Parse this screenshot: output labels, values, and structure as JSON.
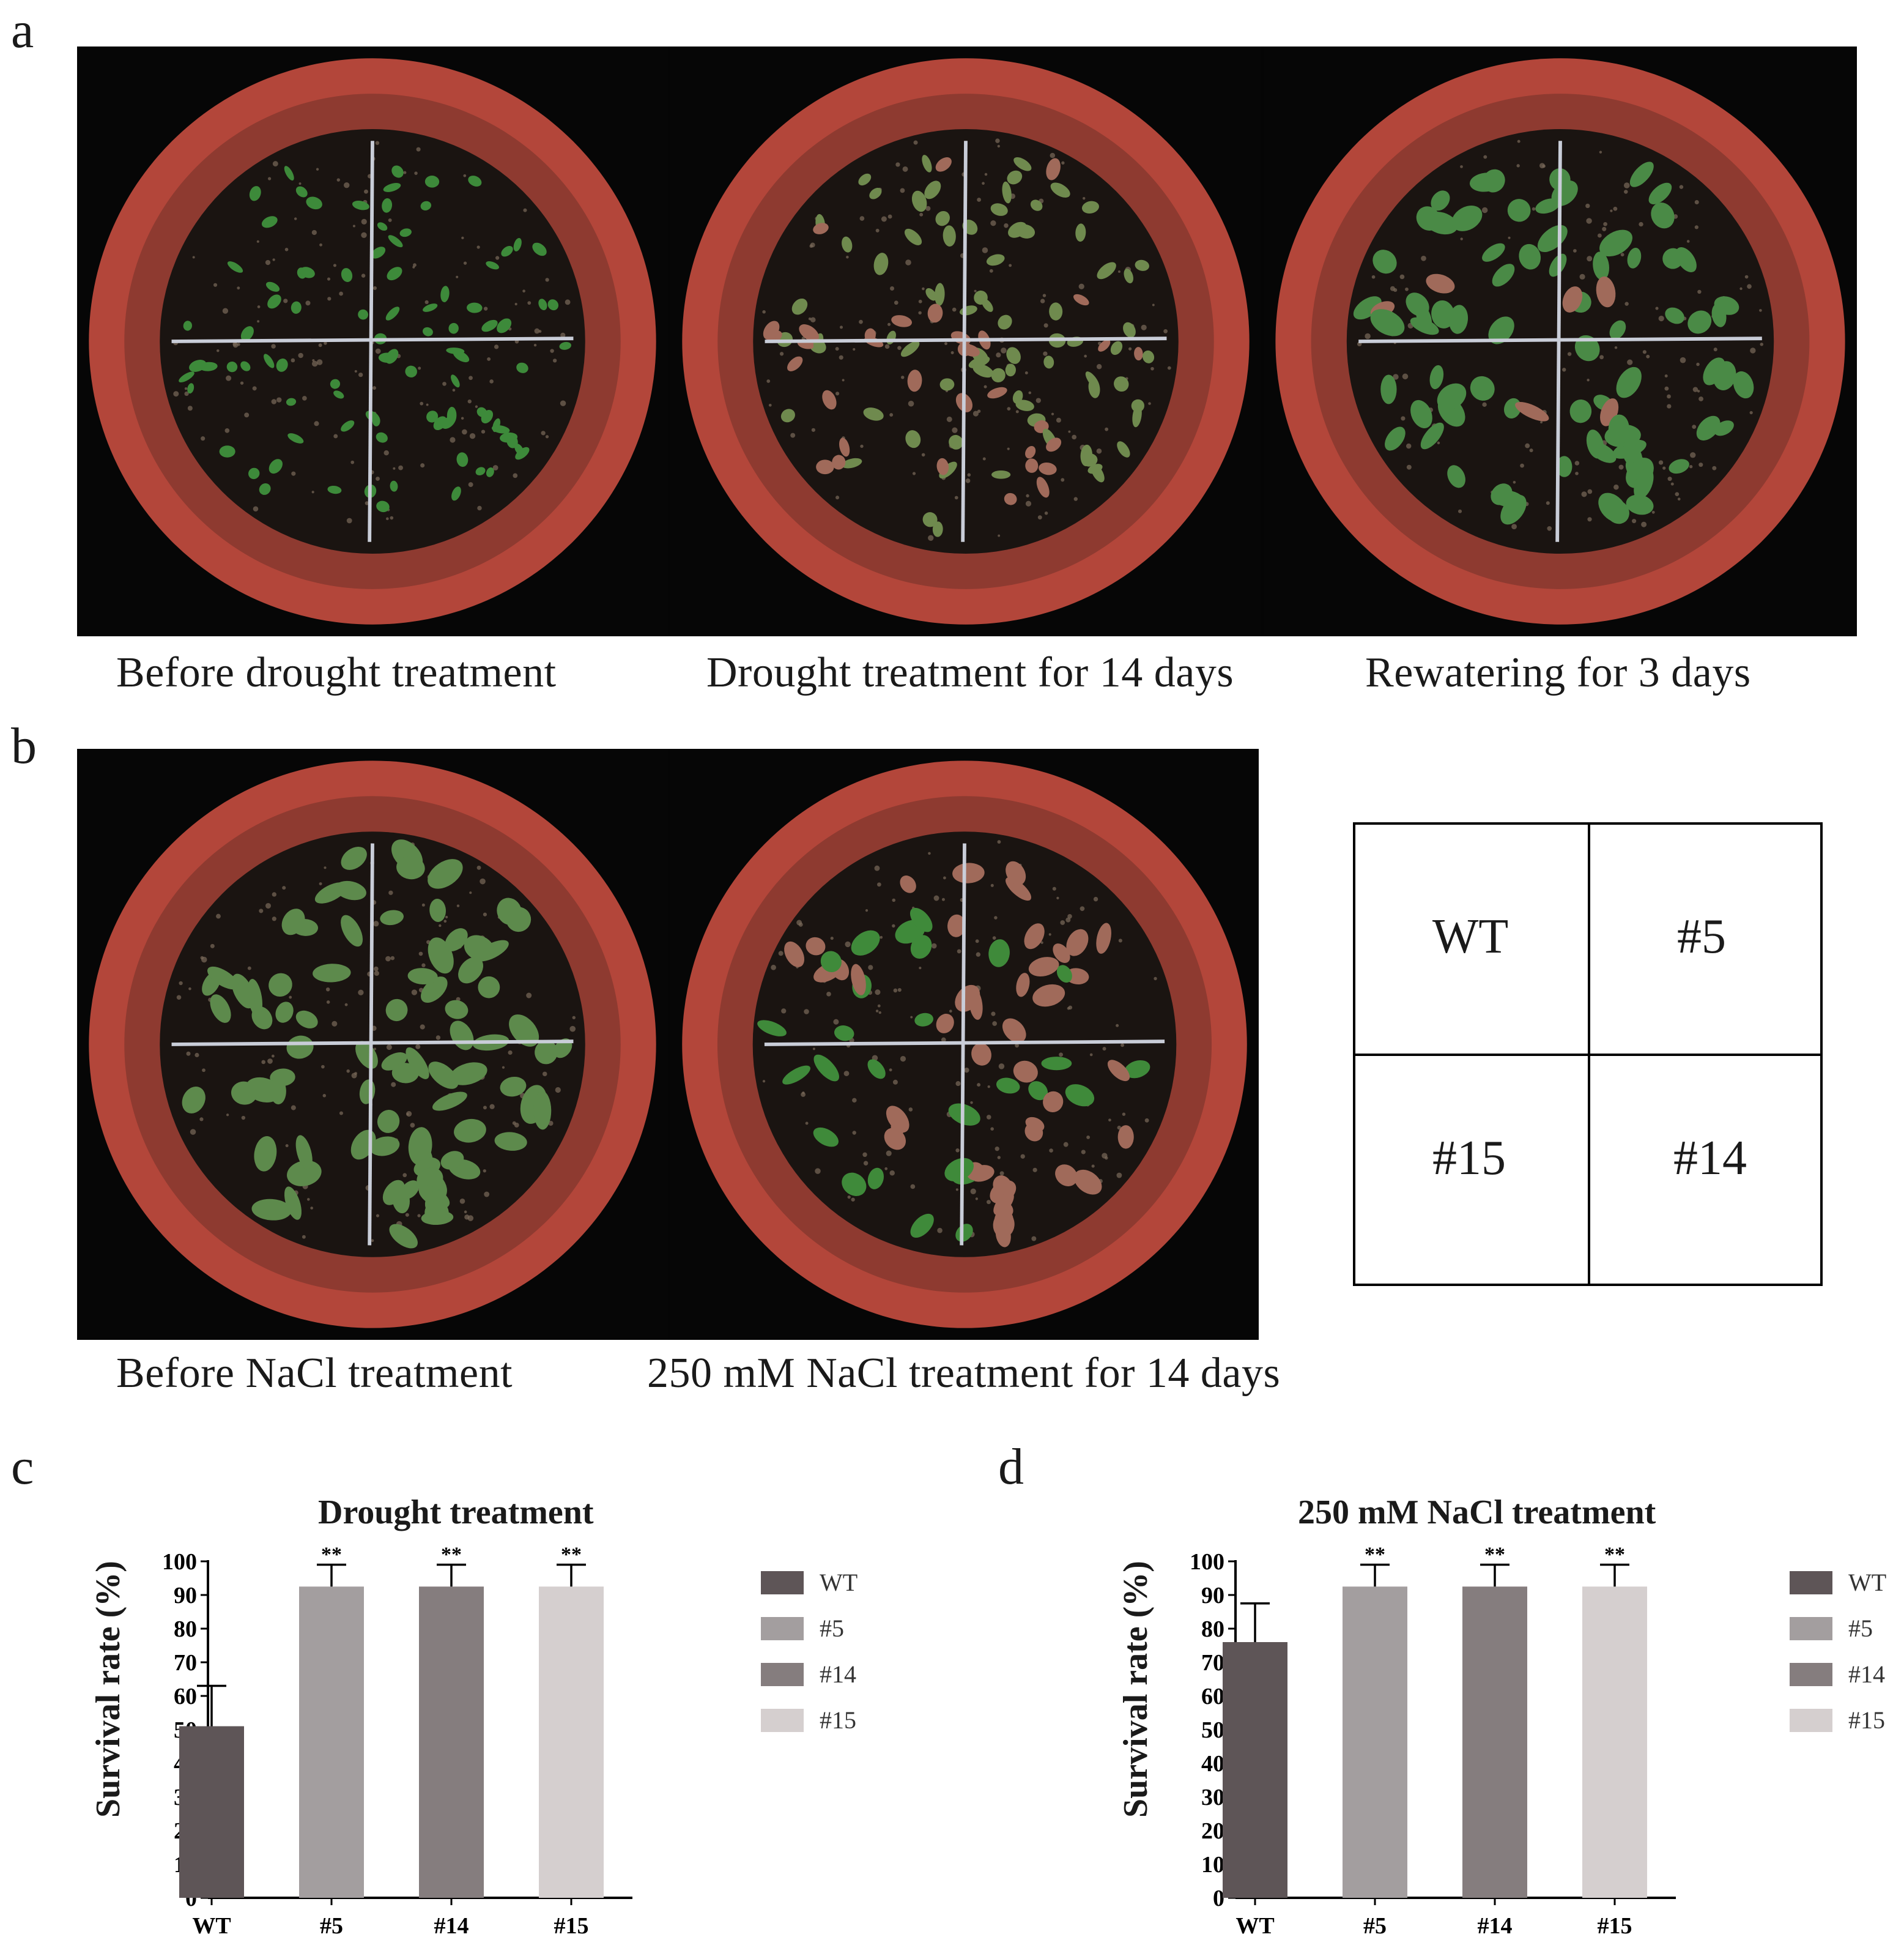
{
  "panels": {
    "a": {
      "letter": "a",
      "captions": [
        "Before drought treatment",
        "Drought treatment for 14 days",
        "Rewatering for 3 days"
      ]
    },
    "b": {
      "letter": "b",
      "captions": [
        "Before NaCl treatment",
        "250 mM NaCl treatment for 14 days"
      ],
      "layout_key": {
        "top_left": "WT",
        "top_right": "#5",
        "bottom_left": "#15",
        "bottom_right": "#14"
      }
    },
    "c": {
      "letter": "c"
    },
    "d": {
      "letter": "d"
    }
  },
  "colors": {
    "WT": "#5e5557",
    "#5": "#a39e9f",
    "#14": "#857d7e",
    "#15": "#d5cfcf",
    "pot_rim": "#b3463a",
    "soil": "#1a1411",
    "leaf_healthy": "#3f7a37",
    "leaf_stressed": "#a06a5a"
  },
  "chart_data": [
    {
      "type": "bar",
      "title": "Drought treatment",
      "xlabel": "",
      "ylabel": "Survival rate (%)",
      "ylim": [
        0,
        100
      ],
      "yticks": [
        0,
        10,
        20,
        30,
        40,
        50,
        60,
        70,
        80,
        90,
        100
      ],
      "categories": [
        "WT",
        "#5",
        "#14",
        "#15"
      ],
      "values": [
        51,
        92.5,
        92.5,
        92.5
      ],
      "errors": [
        12,
        6.5,
        6.5,
        6.5
      ],
      "significance": [
        "",
        "**",
        "**",
        "**"
      ],
      "legend": [
        "WT",
        "#5",
        "#14",
        "#15"
      ],
      "legend_position": "right",
      "grid": false
    },
    {
      "type": "bar",
      "title": "250 mM NaCl treatment",
      "xlabel": "",
      "ylabel": "Survival rate (%)",
      "ylim": [
        0,
        100
      ],
      "yticks": [
        0,
        10,
        20,
        30,
        40,
        50,
        60,
        70,
        80,
        90,
        100
      ],
      "categories": [
        "WT",
        "#5",
        "#14",
        "#15"
      ],
      "values": [
        76,
        92.5,
        92.5,
        92.5
      ],
      "errors": [
        11.5,
        6.5,
        6.5,
        6.5
      ],
      "significance": [
        "",
        "**",
        "**",
        "**"
      ],
      "legend": [
        "WT",
        "#5",
        "#14",
        "#15"
      ],
      "legend_position": "right",
      "grid": false
    }
  ]
}
